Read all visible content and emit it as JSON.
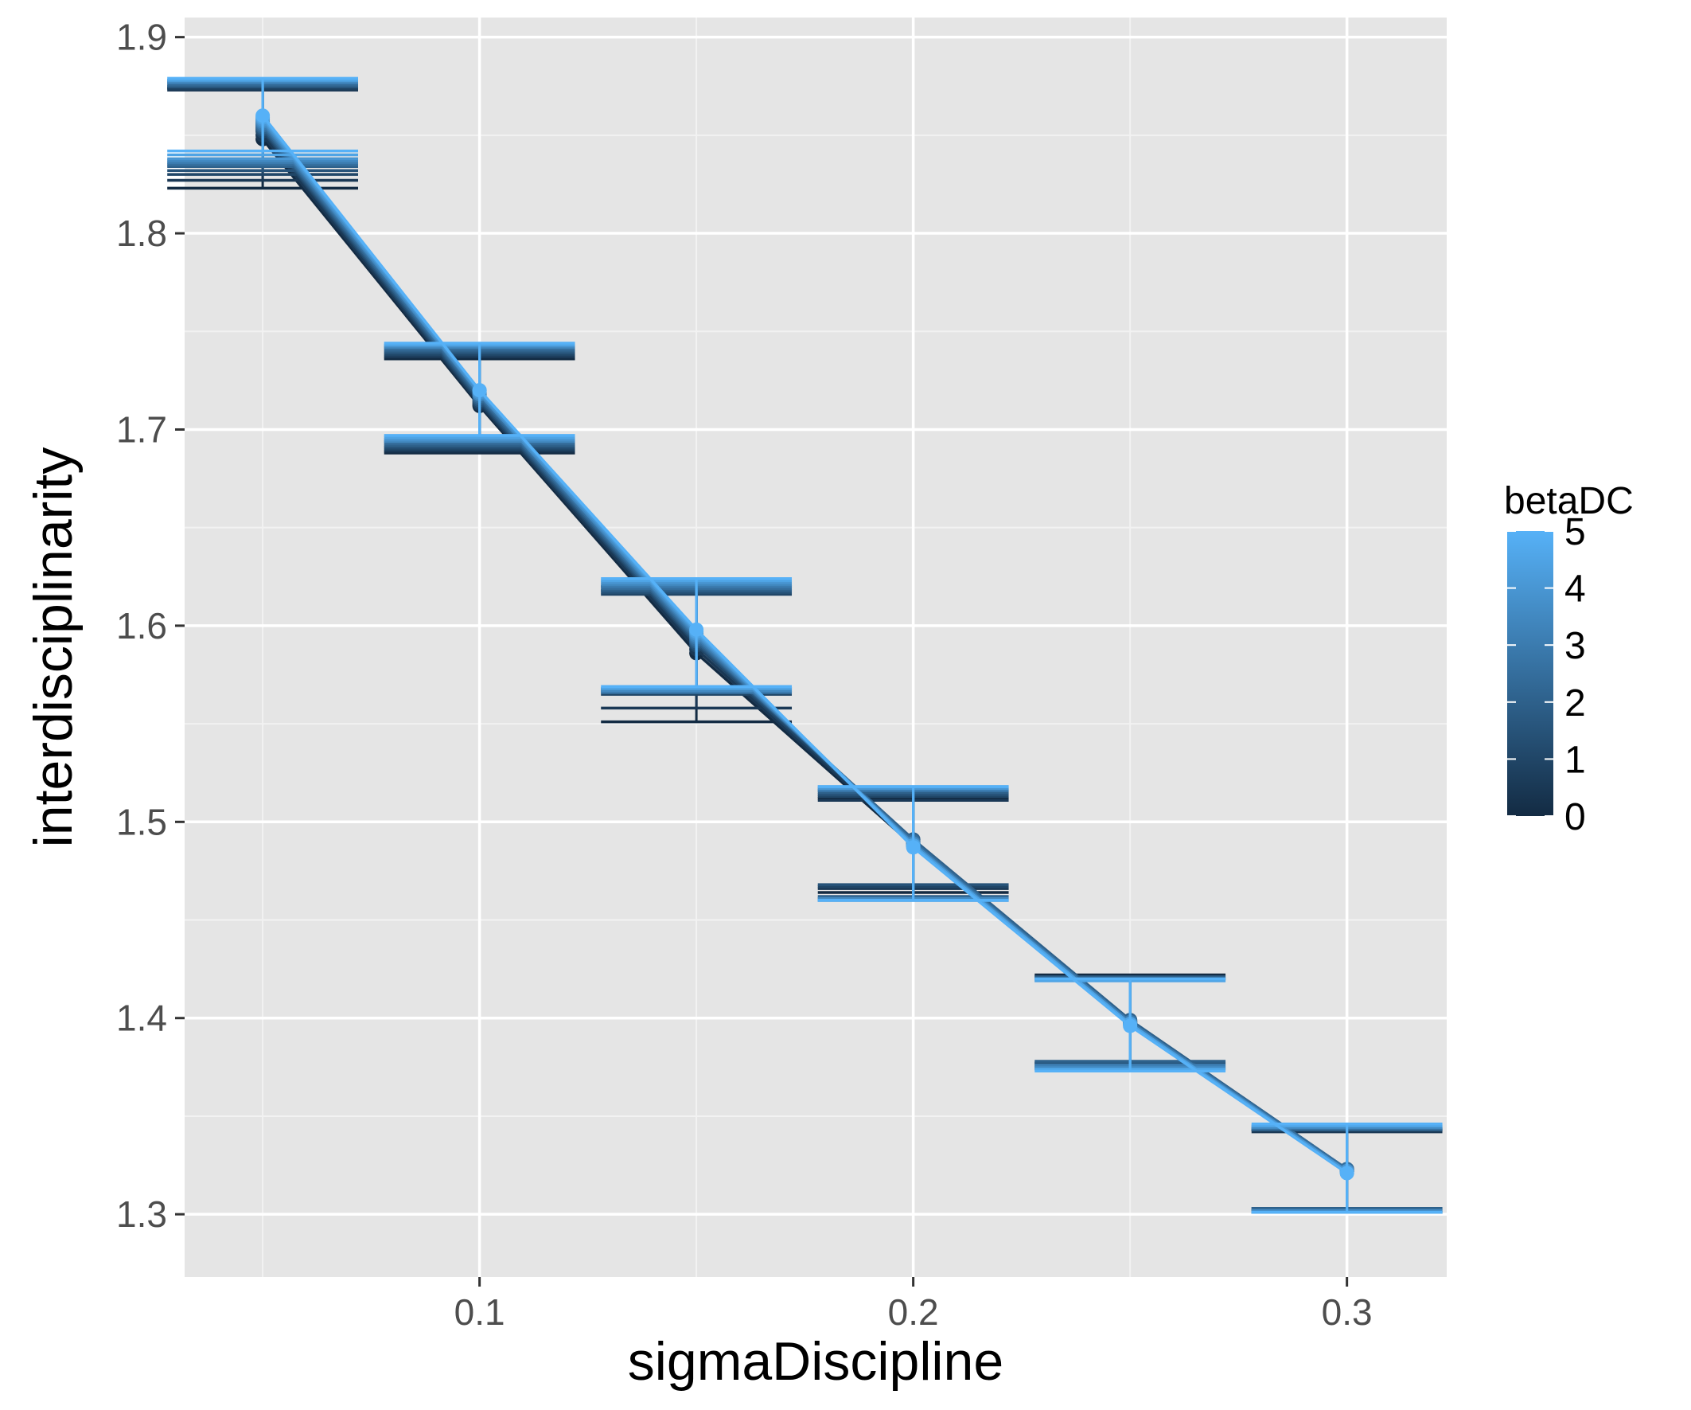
{
  "chart_data": {
    "type": "line",
    "title": "",
    "xlabel": "sigmaDiscipline",
    "ylabel": "interdisciplinarity",
    "x": [
      0.05,
      0.1,
      0.15,
      0.2,
      0.25,
      0.3
    ],
    "xlim": [
      0.032,
      0.323
    ],
    "ylim": [
      1.268,
      1.91
    ],
    "x_ticks": [
      0.1,
      0.2,
      0.3
    ],
    "x_tick_labels": [
      "0.1",
      "0.2",
      "0.3"
    ],
    "y_ticks": [
      1.3,
      1.4,
      1.5,
      1.6,
      1.7,
      1.8,
      1.9
    ],
    "y_tick_labels": [
      "1.3",
      "1.4",
      "1.5",
      "1.6",
      "1.7",
      "1.8",
      "1.9"
    ],
    "grid": true,
    "color_scale": {
      "title": "betaDC",
      "min": 0,
      "max": 5,
      "low_color": "#132B43",
      "high_color": "#56B1F7",
      "ticks": [
        0,
        1,
        2,
        3,
        4,
        5
      ],
      "tick_labels": [
        "0",
        "1",
        "2",
        "3",
        "4",
        "5"
      ],
      "placement": "right"
    },
    "errorbar_halfwidth_x": 0.022,
    "series": [
      {
        "beta": 0,
        "values": [
          1.848,
          1.712,
          1.586,
          1.488,
          1.398,
          1.322
        ],
        "lower": [
          1.823,
          1.688,
          1.551,
          1.464,
          1.374,
          1.301
        ],
        "upper": [
          1.874,
          1.736,
          1.62,
          1.512,
          1.422,
          1.343
        ]
      },
      {
        "beta": 0.5,
        "values": [
          1.85,
          1.713,
          1.588,
          1.489,
          1.398,
          1.322
        ],
        "lower": [
          1.827,
          1.689,
          1.558,
          1.466,
          1.375,
          1.302
        ],
        "upper": [
          1.873,
          1.737,
          1.618,
          1.511,
          1.421,
          1.342
        ]
      },
      {
        "beta": 1,
        "values": [
          1.852,
          1.714,
          1.59,
          1.49,
          1.398,
          1.323
        ],
        "lower": [
          1.83,
          1.69,
          1.565,
          1.467,
          1.377,
          1.302
        ],
        "upper": [
          1.874,
          1.738,
          1.616,
          1.513,
          1.42,
          1.343
        ]
      },
      {
        "beta": 1.5,
        "values": [
          1.853,
          1.715,
          1.591,
          1.491,
          1.399,
          1.323
        ],
        "lower": [
          1.832,
          1.691,
          1.567,
          1.468,
          1.377,
          1.303
        ],
        "upper": [
          1.875,
          1.739,
          1.617,
          1.514,
          1.42,
          1.343
        ]
      },
      {
        "beta": 2,
        "values": [
          1.854,
          1.716,
          1.592,
          1.491,
          1.399,
          1.323
        ],
        "lower": [
          1.834,
          1.692,
          1.568,
          1.462,
          1.378,
          1.303
        ],
        "upper": [
          1.875,
          1.74,
          1.618,
          1.515,
          1.421,
          1.343
        ]
      },
      {
        "beta": 2.5,
        "values": [
          1.855,
          1.717,
          1.593,
          1.49,
          1.398,
          1.323
        ],
        "lower": [
          1.835,
          1.693,
          1.566,
          1.461,
          1.376,
          1.301
        ],
        "upper": [
          1.876,
          1.741,
          1.619,
          1.516,
          1.42,
          1.344
        ]
      },
      {
        "beta": 3,
        "values": [
          1.856,
          1.718,
          1.594,
          1.489,
          1.398,
          1.322
        ],
        "lower": [
          1.836,
          1.694,
          1.566,
          1.46,
          1.376,
          1.301
        ],
        "upper": [
          1.877,
          1.742,
          1.62,
          1.516,
          1.42,
          1.344
        ]
      },
      {
        "beta": 3.5,
        "values": [
          1.857,
          1.718,
          1.595,
          1.489,
          1.397,
          1.322
        ],
        "lower": [
          1.837,
          1.694,
          1.567,
          1.461,
          1.375,
          1.302
        ],
        "upper": [
          1.877,
          1.742,
          1.621,
          1.517,
          1.42,
          1.344
        ]
      },
      {
        "beta": 4,
        "values": [
          1.858,
          1.719,
          1.596,
          1.488,
          1.397,
          1.322
        ],
        "lower": [
          1.838,
          1.695,
          1.568,
          1.46,
          1.374,
          1.301
        ],
        "upper": [
          1.878,
          1.743,
          1.622,
          1.517,
          1.419,
          1.345
        ]
      },
      {
        "beta": 4.5,
        "values": [
          1.859,
          1.72,
          1.597,
          1.488,
          1.397,
          1.321
        ],
        "lower": [
          1.84,
          1.696,
          1.568,
          1.46,
          1.374,
          1.301
        ],
        "upper": [
          1.878,
          1.743,
          1.623,
          1.518,
          1.419,
          1.345
        ]
      },
      {
        "beta": 5,
        "values": [
          1.86,
          1.72,
          1.598,
          1.487,
          1.396,
          1.321
        ],
        "lower": [
          1.842,
          1.697,
          1.569,
          1.46,
          1.373,
          1.301
        ],
        "upper": [
          1.879,
          1.744,
          1.624,
          1.518,
          1.42,
          1.346
        ]
      }
    ]
  }
}
